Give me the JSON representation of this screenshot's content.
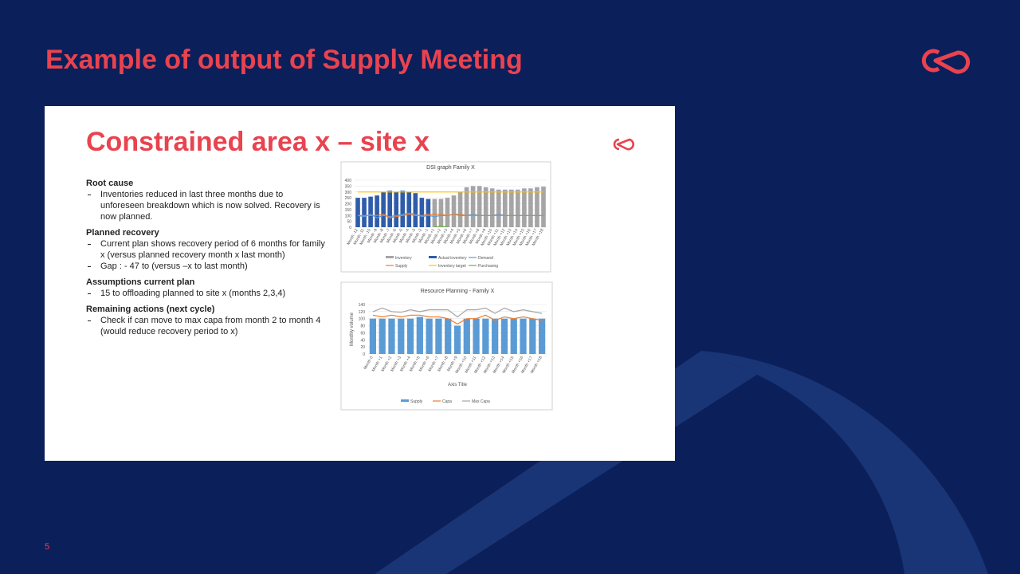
{
  "header": {
    "title": "Example of output of Supply Meeting"
  },
  "page_number": "5",
  "content": {
    "title": "Constrained area x – site x",
    "sections": [
      {
        "heading": "Root cause",
        "bullets": [
          "Inventories reduced in last three months due to unforeseen breakdown which is now solved. Recovery is now planned."
        ]
      },
      {
        "heading": "Planned recovery",
        "bullets": [
          "Current plan shows recovery period of 6 months for family x (versus planned recovery month x last month)",
          "Gap : - 47 to (versus –x to last month)"
        ]
      },
      {
        "heading": "Assumptions current plan",
        "bullets": [
          "15 to offloading planned to site x (months 2,3,4)"
        ]
      },
      {
        "heading": "Remaining actions (next cycle)",
        "bullets": [
          "Check if can move to max capa from month 2 to month 4 (would reduce recovery period to x)"
        ]
      }
    ]
  },
  "chart_data": [
    {
      "type": "bar",
      "title": "DSI graph Family X",
      "categories": [
        "Month -12",
        "Month -11",
        "Month -10",
        "Month -9",
        "Month -8",
        "Month -7",
        "Month -6",
        "Month -5",
        "Month -4",
        "Month -3",
        "Month -2",
        "Month -1",
        "Month +1",
        "Month +2",
        "Month +3",
        "Month +4",
        "Month +5",
        "Month +6",
        "Month +7",
        "Month +8",
        "Month +9",
        "Month +10",
        "Month +11",
        "Month +12",
        "Month +13",
        "Month +14",
        "Month +15",
        "Month +16",
        "Month +17",
        "Month +18"
      ],
      "ylim": [
        0,
        400
      ],
      "yticks": [
        0,
        50,
        100,
        150,
        200,
        250,
        300,
        350,
        400
      ],
      "grid": true,
      "series": [
        {
          "name": "Inventory",
          "type": "bar",
          "color": "#a5a5a5",
          "values": [
            null,
            null,
            null,
            null,
            null,
            null,
            null,
            null,
            null,
            null,
            null,
            null,
            240,
            240,
            250,
            270,
            300,
            340,
            350,
            350,
            340,
            330,
            320,
            320,
            320,
            320,
            330,
            330,
            340,
            345
          ]
        },
        {
          "name": "Actual inventory",
          "type": "bar",
          "color": "#2e5caa",
          "values": [
            250,
            250,
            260,
            270,
            300,
            310,
            300,
            310,
            300,
            290,
            250,
            240,
            null,
            null,
            null,
            null,
            null,
            null,
            null,
            null,
            null,
            null,
            null,
            null,
            null,
            null,
            null,
            null,
            null,
            null
          ]
        },
        {
          "name": "Demand",
          "type": "line",
          "color": "#5b9bd5",
          "values": [
            100,
            90,
            110,
            80,
            100,
            90,
            100,
            110,
            120,
            110,
            90,
            100,
            90,
            100,
            100,
            110,
            100,
            100,
            110,
            100,
            100,
            100,
            110,
            100,
            100,
            100,
            100,
            100,
            100,
            100
          ]
        },
        {
          "name": "Supply",
          "type": "line",
          "color": "#ed7d31",
          "values": [
            100,
            100,
            100,
            100,
            110,
            80,
            90,
            100,
            110,
            100,
            100,
            110,
            110,
            110,
            100,
            110,
            110,
            100,
            100,
            100,
            100,
            100,
            100,
            100,
            100,
            100,
            100,
            100,
            100,
            100
          ]
        },
        {
          "name": "Inventory target",
          "type": "line",
          "color": "#ffc000",
          "values": [
            300,
            300,
            300,
            300,
            300,
            300,
            300,
            300,
            300,
            300,
            300,
            300,
            300,
            300,
            300,
            300,
            300,
            300,
            300,
            300,
            300,
            300,
            300,
            300,
            300,
            300,
            300,
            300,
            300,
            300
          ]
        },
        {
          "name": "Purchasing",
          "type": "line",
          "color": "#70ad47",
          "values": [
            null,
            null,
            null,
            null,
            null,
            null,
            null,
            null,
            null,
            null,
            null,
            null,
            5,
            5,
            5,
            null,
            null,
            null,
            null,
            null,
            null,
            null,
            null,
            null,
            null,
            null,
            null,
            null,
            null,
            null
          ]
        }
      ]
    },
    {
      "type": "bar",
      "title": "Resource Planning - Family X",
      "y_label": "Monthly volume",
      "x_label": "Axis Title",
      "categories": [
        "Month 0",
        "Month +1",
        "Month +2",
        "Month +3",
        "Month +4",
        "Month +5",
        "Month +6",
        "Month +7",
        "Month +8",
        "Month +9",
        "Month +10",
        "Month +11",
        "Month +12",
        "Month +13",
        "Month +14",
        "Month +15",
        "Month +16",
        "Month +17",
        "Month +18"
      ],
      "ylim": [
        0,
        140
      ],
      "yticks": [
        0,
        20,
        40,
        60,
        80,
        100,
        120,
        140
      ],
      "grid": true,
      "series": [
        {
          "name": "Supply",
          "type": "bar",
          "color": "#5b9bd5",
          "values": [
            100,
            100,
            100,
            100,
            100,
            105,
            100,
            100,
            100,
            80,
            100,
            100,
            100,
            100,
            100,
            100,
            100,
            100,
            100
          ]
        },
        {
          "name": "Capa",
          "type": "line",
          "color": "#ed7d31",
          "values": [
            110,
            105,
            110,
            105,
            110,
            110,
            105,
            105,
            100,
            85,
            100,
            100,
            110,
            95,
            105,
            100,
            105,
            100,
            95
          ]
        },
        {
          "name": "Max Capa",
          "type": "line",
          "color": "#a5a5a5",
          "values": [
            120,
            130,
            120,
            118,
            125,
            120,
            125,
            125,
            125,
            105,
            125,
            125,
            130,
            115,
            130,
            120,
            125,
            120,
            115
          ]
        }
      ]
    }
  ]
}
